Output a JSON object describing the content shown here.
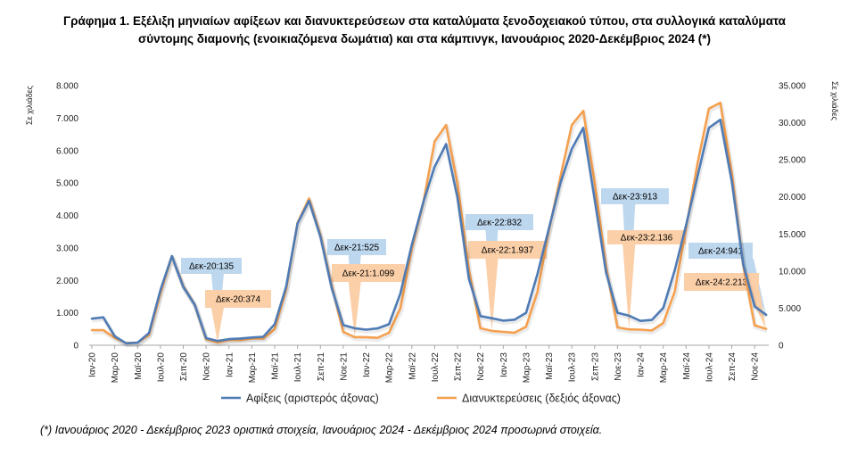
{
  "header": {
    "title_line1": "Γράφημα 1. Εξέλιξη μηνιαίων αφίξεων και διανυκτερεύσεων στα καταλύματα ξενοδοχειακού τύπου, στα συλλογικά καταλύματα",
    "title_line2": "σύντομης διαμονής (ενοικιαζόμενα δωμάτια) και στα κάμπινγκ, Ιανουάριος 2020-Δεκέμβριος 2024 (*)"
  },
  "footnote": "(*) Ιανουάριος 2020 - Δεκέμβριος 2023 οριστικά στοιχεία, Ιανουάριος 2024 - Δεκέμβριος 2024 προσωρινά στοιχεία.",
  "colors": {
    "arrivals": "#4f7bb5",
    "nights": "#f5a04f",
    "arrivals_callout": "#bdd7ee",
    "nights_callout": "#fbcfa8"
  },
  "chart_data": {
    "type": "line",
    "x": [
      "Ιαν-20",
      "Φεβ-20",
      "Μαρ-20",
      "Απρ-20",
      "Μαϊ-20",
      "Ιουν-20",
      "Ιουλ-20",
      "Αυγ-20",
      "Σεπ-20",
      "Οκτ-20",
      "Νοε-20",
      "Δεκ-20",
      "Ιαν-21",
      "Φεβ-21",
      "Μαρ-21",
      "Απρ-21",
      "Μαϊ-21",
      "Ιουν-21",
      "Ιουλ-21",
      "Αυγ-21",
      "Σεπ-21",
      "Οκτ-21",
      "Νοε-21",
      "Δεκ-21",
      "Ιαν-22",
      "Φεβ-22",
      "Μαρ-22",
      "Απρ-22",
      "Μαϊ-22",
      "Ιουν-22",
      "Ιουλ-22",
      "Αυγ-22",
      "Σεπ-22",
      "Οκτ-22",
      "Νοε-22",
      "Δεκ-22",
      "Ιαν-23",
      "Φεβ-23",
      "Μαρ-23",
      "Απρ-23",
      "Μαϊ-23",
      "Ιουν-23",
      "Ιουλ-23",
      "Αυγ-23",
      "Σεπ-23",
      "Οκτ-23",
      "Νοε-23",
      "Δεκ-23",
      "Ιαν-24",
      "Φεβ-24",
      "Μαρ-24",
      "Απρ-24",
      "Μαϊ-24",
      "Ιουν-24",
      "Ιουλ-24",
      "Αυγ-24",
      "Σεπ-24",
      "Οκτ-24",
      "Νοε-24",
      "Δεκ-24"
    ],
    "x_tick_labels": [
      "Ιαν-20",
      "Μαρ-20",
      "Μαϊ-20",
      "Ιουλ-20",
      "Σεπ-20",
      "Νοε-20",
      "Ιαν-21",
      "Μαρ-21",
      "Μαϊ-21",
      "Ιουλ-21",
      "Σεπ-21",
      "Νοε-21",
      "Ιαν-22",
      "Μαρ-22",
      "Μαϊ-22",
      "Ιουλ-22",
      "Σεπ-22",
      "Νοε-22",
      "Ιαν-23",
      "Μαρ-23",
      "Μαϊ-23",
      "Ιουλ-23",
      "Σεπ-23",
      "Νοε-23",
      "Ιαν-24",
      "Μαρ-24",
      "Μαϊ-24",
      "Ιουλ-24",
      "Σεπ-24",
      "Νοε-24"
    ],
    "y_left": {
      "label": "Σε χιλιάδες",
      "lim": [
        0,
        8000
      ],
      "ticks": [
        "0",
        "1.000",
        "2.000",
        "3.000",
        "4.000",
        "5.000",
        "6.000",
        "7.000",
        "8.000"
      ]
    },
    "y_right": {
      "label": "Σε χιλιάδες",
      "lim": [
        0,
        35000
      ],
      "ticks": [
        "0",
        "5.000",
        "10.000",
        "15.000",
        "20.000",
        "25.000",
        "30.000",
        "35.000"
      ]
    },
    "series": [
      {
        "name": "Αφίξεις (αριστερός άξονας)",
        "axis": "left",
        "values": [
          820,
          860,
          280,
          60,
          80,
          380,
          1700,
          2750,
          1800,
          1250,
          220,
          135,
          190,
          210,
          240,
          260,
          650,
          1800,
          3750,
          4450,
          3350,
          1750,
          620,
          525,
          480,
          520,
          650,
          1600,
          3100,
          4400,
          5500,
          6200,
          4550,
          2050,
          900,
          832,
          760,
          790,
          1000,
          2200,
          3600,
          5000,
          6050,
          6700,
          4500,
          2250,
          1000,
          913,
          750,
          780,
          1150,
          2300,
          3700,
          5200,
          6700,
          6950,
          5050,
          2500,
          1200,
          941
        ]
      },
      {
        "name": "Διανυκτερεύσεις (δεξιός άξονας)",
        "axis": "right",
        "values": [
          2050,
          2050,
          1000,
          300,
          350,
          1400,
          7000,
          12000,
          8000,
          5500,
          800,
          374,
          700,
          700,
          900,
          900,
          2200,
          7500,
          16500,
          19800,
          14900,
          8000,
          1800,
          1099,
          1100,
          1000,
          1700,
          5000,
          13000,
          19200,
          27500,
          29700,
          21800,
          10200,
          2300,
          1937,
          1800,
          1700,
          2500,
          7200,
          15500,
          22700,
          29700,
          31600,
          22000,
          10600,
          2400,
          2136,
          2100,
          2000,
          3000,
          7200,
          15800,
          24500,
          31900,
          32700,
          23200,
          10800,
          2700,
          2213
        ]
      }
    ],
    "annotations": [
      {
        "series": "Αφίξεις",
        "label": "Δεκ-20:135"
      },
      {
        "series": "Διανυκτερεύσεις",
        "label": "Δεκ-20:374"
      },
      {
        "series": "Αφίξεις",
        "label": "Δεκ-21:525"
      },
      {
        "series": "Διανυκτερεύσεις",
        "label": "Δεκ-21:1.099"
      },
      {
        "series": "Αφίξεις",
        "label": "Δεκ-22:832"
      },
      {
        "series": "Διανυκτερεύσεις",
        "label": "Δεκ-22:1.937"
      },
      {
        "series": "Αφίξεις",
        "label": "Δεκ-23:913"
      },
      {
        "series": "Διανυκτερεύσεις",
        "label": "Δεκ-23:2.136"
      },
      {
        "series": "Αφίξεις",
        "label": "Δεκ-24:941"
      },
      {
        "series": "Διανυκτερεύσεις",
        "label": "Δεκ-24:2.213"
      }
    ],
    "legend_position": "bottom",
    "grid": false
  }
}
